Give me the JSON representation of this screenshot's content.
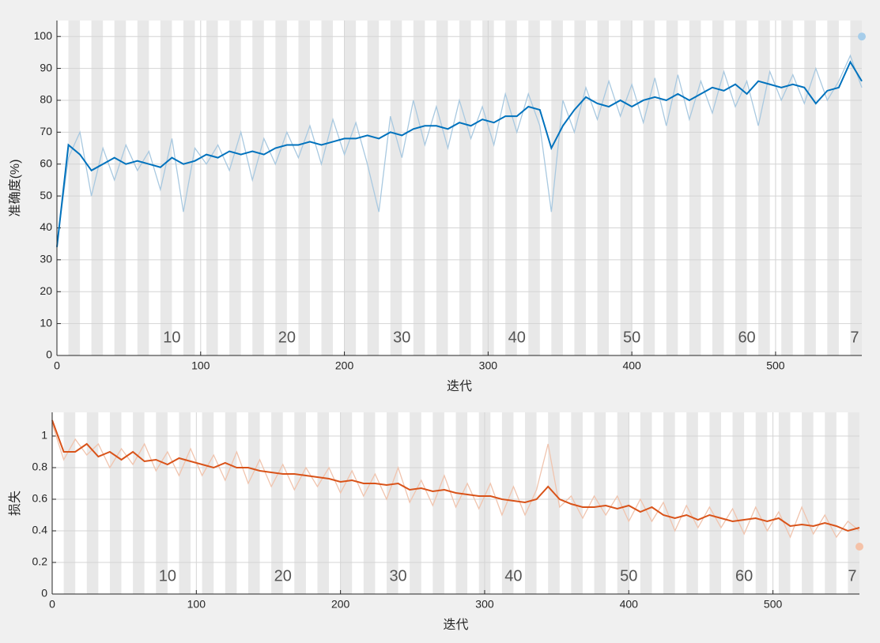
{
  "chart_data": [
    {
      "type": "line",
      "xlabel": "迭代",
      "ylabel": "准确度(%)",
      "x": [
        0,
        8,
        16,
        24,
        32,
        40,
        48,
        56,
        64,
        72,
        80,
        88,
        96,
        104,
        112,
        120,
        128,
        136,
        144,
        152,
        160,
        168,
        176,
        184,
        192,
        200,
        208,
        216,
        224,
        232,
        240,
        248,
        256,
        264,
        272,
        280,
        288,
        296,
        304,
        312,
        320,
        328,
        336,
        344,
        352,
        360,
        368,
        376,
        384,
        392,
        400,
        408,
        416,
        424,
        432,
        440,
        448,
        456,
        464,
        472,
        480,
        488,
        496,
        504,
        512,
        520,
        528,
        536,
        544,
        552,
        560
      ],
      "series": [
        {
          "color": "#a9c9e0",
          "values": [
            35,
            62,
            70,
            50,
            65,
            55,
            66,
            58,
            64,
            52,
            68,
            45,
            65,
            60,
            66,
            58,
            70,
            55,
            68,
            60,
            70,
            62,
            72,
            60,
            74,
            63,
            73,
            60,
            45,
            75,
            62,
            80,
            66,
            78,
            65,
            80,
            68,
            78,
            66,
            82,
            70,
            82,
            72,
            45,
            80,
            70,
            84,
            74,
            86,
            75,
            85,
            73,
            87,
            72,
            88,
            74,
            86,
            76,
            89,
            78,
            86,
            72,
            89,
            80,
            88,
            79,
            90,
            80,
            86,
            94,
            84
          ]
        },
        {
          "color": "#0072bd",
          "values": [
            34,
            66,
            63,
            58,
            60,
            62,
            60,
            61,
            60,
            59,
            62,
            60,
            61,
            63,
            62,
            64,
            63,
            64,
            63,
            65,
            66,
            66,
            67,
            66,
            67,
            68,
            68,
            69,
            68,
            70,
            69,
            71,
            72,
            72,
            71,
            73,
            72,
            74,
            73,
            75,
            75,
            78,
            77,
            65,
            72,
            77,
            81,
            79,
            78,
            80,
            78,
            80,
            81,
            80,
            82,
            80,
            82,
            84,
            83,
            85,
            82,
            86,
            85,
            84,
            85,
            84,
            79,
            83,
            84,
            92,
            86
          ]
        }
      ],
      "final_point": {
        "x": 560,
        "y": 100,
        "color": "#a6cdea"
      },
      "epoch_labels": [
        {
          "value": 80,
          "label": "10"
        },
        {
          "value": 160,
          "label": "20"
        },
        {
          "value": 240,
          "label": "30"
        },
        {
          "value": 320,
          "label": "40"
        },
        {
          "value": 400,
          "label": "50"
        },
        {
          "value": 480,
          "label": "60"
        },
        {
          "value": 555,
          "label": "7"
        }
      ],
      "xlim": [
        0,
        560
      ],
      "xticks": [
        0,
        100,
        200,
        300,
        400,
        500
      ],
      "ylim": [
        0,
        105
      ],
      "yticks": [
        0,
        10,
        20,
        30,
        40,
        50,
        60,
        70,
        80,
        90,
        100
      ],
      "grid": true
    },
    {
      "type": "line",
      "xlabel": "迭代",
      "ylabel": "损失",
      "x": [
        0,
        8,
        16,
        24,
        32,
        40,
        48,
        56,
        64,
        72,
        80,
        88,
        96,
        104,
        112,
        120,
        128,
        136,
        144,
        152,
        160,
        168,
        176,
        184,
        192,
        200,
        208,
        216,
        224,
        232,
        240,
        248,
        256,
        264,
        272,
        280,
        288,
        296,
        304,
        312,
        320,
        328,
        336,
        344,
        352,
        360,
        368,
        376,
        384,
        392,
        400,
        408,
        416,
        424,
        432,
        440,
        448,
        456,
        464,
        472,
        480,
        488,
        496,
        504,
        512,
        520,
        528,
        536,
        544,
        552,
        560
      ],
      "series": [
        {
          "color": "#f0c4ae",
          "values": [
            1.08,
            0.85,
            0.98,
            0.88,
            0.95,
            0.8,
            0.92,
            0.82,
            0.95,
            0.78,
            0.9,
            0.75,
            0.92,
            0.75,
            0.88,
            0.72,
            0.9,
            0.7,
            0.85,
            0.68,
            0.82,
            0.66,
            0.8,
            0.68,
            0.8,
            0.64,
            0.78,
            0.62,
            0.76,
            0.6,
            0.8,
            0.58,
            0.72,
            0.56,
            0.75,
            0.55,
            0.7,
            0.54,
            0.7,
            0.5,
            0.68,
            0.5,
            0.66,
            0.95,
            0.55,
            0.62,
            0.48,
            0.62,
            0.5,
            0.62,
            0.46,
            0.6,
            0.46,
            0.58,
            0.4,
            0.56,
            0.42,
            0.55,
            0.42,
            0.54,
            0.38,
            0.55,
            0.4,
            0.52,
            0.36,
            0.55,
            0.38,
            0.5,
            0.36,
            0.46,
            0.4
          ]
        },
        {
          "color": "#d95319",
          "values": [
            1.1,
            0.9,
            0.9,
            0.95,
            0.87,
            0.9,
            0.85,
            0.9,
            0.84,
            0.85,
            0.82,
            0.86,
            0.84,
            0.82,
            0.8,
            0.83,
            0.8,
            0.8,
            0.78,
            0.77,
            0.76,
            0.76,
            0.75,
            0.74,
            0.73,
            0.71,
            0.72,
            0.7,
            0.7,
            0.69,
            0.7,
            0.66,
            0.67,
            0.65,
            0.66,
            0.64,
            0.63,
            0.62,
            0.62,
            0.6,
            0.59,
            0.58,
            0.6,
            0.68,
            0.6,
            0.57,
            0.55,
            0.55,
            0.56,
            0.54,
            0.56,
            0.52,
            0.55,
            0.5,
            0.48,
            0.5,
            0.47,
            0.5,
            0.48,
            0.46,
            0.47,
            0.48,
            0.46,
            0.48,
            0.43,
            0.44,
            0.43,
            0.45,
            0.43,
            0.4,
            0.42
          ]
        }
      ],
      "final_point": {
        "x": 560,
        "y": 0.3,
        "color": "#f5c2a8"
      },
      "epoch_labels": [
        {
          "value": 80,
          "label": "10"
        },
        {
          "value": 160,
          "label": "20"
        },
        {
          "value": 240,
          "label": "30"
        },
        {
          "value": 320,
          "label": "40"
        },
        {
          "value": 400,
          "label": "50"
        },
        {
          "value": 480,
          "label": "60"
        },
        {
          "value": 555,
          "label": "7"
        }
      ],
      "xlim": [
        0,
        560
      ],
      "xticks": [
        0,
        100,
        200,
        300,
        400,
        500
      ],
      "ylim": [
        0,
        1.15
      ],
      "yticks": [
        0,
        0.2,
        0.4,
        0.6,
        0.8,
        1
      ],
      "grid": true
    }
  ]
}
